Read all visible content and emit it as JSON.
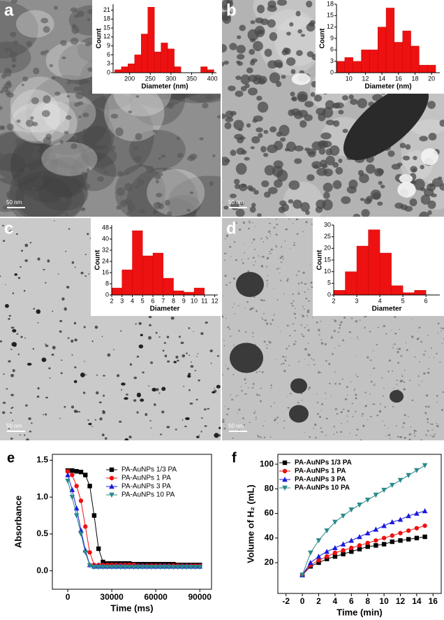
{
  "chart_data": [
    {
      "type": "histogram",
      "panel": "a",
      "scale_bar": "50 nm",
      "xlabel": "Diameter (nm)",
      "ylabel": "Count",
      "color": "#ee1111",
      "bins": [
        164,
        180,
        196,
        212,
        228,
        244,
        260,
        276,
        292,
        308,
        324,
        340,
        356,
        372,
        388,
        404
      ],
      "counts": [
        1,
        2,
        3,
        6,
        13,
        22,
        7,
        10,
        8,
        2,
        0,
        0,
        0,
        2,
        1
      ],
      "xlim": [
        160,
        410
      ],
      "xticks": [
        200,
        250,
        300,
        350,
        400
      ],
      "ylim": [
        0,
        23
      ],
      "yticks": [
        0,
        3,
        6,
        9,
        12,
        15,
        18,
        21
      ]
    },
    {
      "type": "histogram",
      "panel": "b",
      "scale_bar": "50 nm",
      "xlabel": "Diameter (nm)",
      "ylabel": "Count",
      "color": "#ee1111",
      "bins": [
        8.5,
        9.5,
        10.5,
        11.5,
        12.5,
        13.5,
        14.5,
        15.5,
        16.5,
        17.5,
        18.5,
        19.5,
        20.5
      ],
      "counts": [
        3,
        4,
        3,
        6,
        6,
        12,
        17,
        8,
        11,
        7,
        2,
        2
      ],
      "xlim": [
        8.5,
        21
      ],
      "xticks": [
        10,
        12,
        14,
        16,
        18,
        20
      ],
      "ylim": [
        0,
        18
      ],
      "yticks": [
        0,
        3,
        6,
        9,
        12,
        15,
        18
      ]
    },
    {
      "type": "histogram",
      "panel": "c",
      "scale_bar": "50 nm",
      "xlabel": "Diameter",
      "ylabel": "Count",
      "color": "#ee1111",
      "bins": [
        2,
        3,
        4,
        5,
        6,
        7,
        8,
        9,
        10,
        11
      ],
      "counts": [
        5,
        18,
        46,
        28,
        30,
        12,
        3,
        2,
        5
      ],
      "xlim": [
        2,
        12.3
      ],
      "xticks": [
        2,
        3,
        4,
        5,
        6,
        7,
        8,
        9,
        10,
        11,
        12
      ],
      "ylim": [
        0,
        50
      ],
      "yticks": [
        0,
        8,
        16,
        24,
        32,
        40,
        48
      ]
    },
    {
      "type": "histogram",
      "panel": "d",
      "scale_bar": "50 nm",
      "xlabel": "Diameter",
      "ylabel": "Count",
      "color": "#ee1111",
      "bins": [
        2,
        2.5,
        3,
        3.5,
        4,
        4.5,
        5,
        5.5,
        6
      ],
      "counts": [
        2,
        10,
        21,
        28,
        18,
        4,
        1,
        2
      ],
      "xlim": [
        2,
        6.6
      ],
      "xticks": [
        2,
        3,
        4,
        5,
        6
      ],
      "ylim": [
        0,
        30
      ],
      "yticks": [
        0,
        5,
        10,
        15,
        20,
        25,
        30
      ]
    },
    {
      "type": "line",
      "panel": "e",
      "xlabel": "Time (ms)",
      "ylabel": "Absorbance",
      "x": [
        0,
        3000,
        6000,
        9000,
        12000,
        15000,
        18000,
        21000,
        24000,
        27000,
        30000,
        33000,
        36000,
        39000,
        42000,
        45000,
        48000,
        51000,
        54000,
        57000,
        60000,
        63000,
        66000,
        69000,
        72000,
        75000,
        78000,
        81000,
        84000,
        87000,
        90000
      ],
      "series": [
        {
          "name": "PA-AuNPs 1/3 PA",
          "color": "#000000",
          "marker": "square",
          "values": [
            1.36,
            1.36,
            1.35,
            1.34,
            1.3,
            1.15,
            0.75,
            0.3,
            0.12,
            0.1,
            0.1,
            0.1,
            0.1,
            0.1,
            0.1,
            0.09,
            0.09,
            0.09,
            0.09,
            0.09,
            0.09,
            0.09,
            0.09,
            0.09,
            0.09,
            0.08,
            0.08,
            0.08,
            0.08,
            0.08,
            0.08
          ]
        },
        {
          "name": "PA-AuNPs 1 PA",
          "color": "#ee1111",
          "marker": "circle",
          "values": [
            1.35,
            1.3,
            1.15,
            0.95,
            0.6,
            0.25,
            0.08,
            0.08,
            0.08,
            0.08,
            0.08,
            0.08,
            0.08,
            0.08,
            0.08,
            0.08,
            0.07,
            0.07,
            0.07,
            0.07,
            0.07,
            0.07,
            0.07,
            0.07,
            0.07,
            0.07,
            0.07,
            0.07,
            0.07,
            0.07,
            0.07
          ]
        },
        {
          "name": "PA-AuNPs 3 PA",
          "color": "#1a1adb",
          "marker": "triangle-up",
          "values": [
            1.3,
            1.1,
            0.85,
            0.55,
            0.28,
            0.08,
            0.06,
            0.06,
            0.06,
            0.06,
            0.06,
            0.06,
            0.06,
            0.06,
            0.06,
            0.06,
            0.06,
            0.06,
            0.06,
            0.06,
            0.06,
            0.06,
            0.06,
            0.06,
            0.06,
            0.06,
            0.06,
            0.06,
            0.06,
            0.06,
            0.06
          ]
        },
        {
          "name": "PA-AuNPs 10 PA",
          "color": "#2a8a8a",
          "marker": "triangle-down",
          "values": [
            1.22,
            1.0,
            0.75,
            0.5,
            0.25,
            0.07,
            0.05,
            0.05,
            0.05,
            0.05,
            0.05,
            0.05,
            0.05,
            0.05,
            0.05,
            0.05,
            0.05,
            0.05,
            0.05,
            0.05,
            0.05,
            0.05,
            0.05,
            0.05,
            0.05,
            0.05,
            0.05,
            0.05,
            0.05,
            0.05,
            0.05
          ]
        }
      ],
      "xlim": [
        -10500,
        98000
      ],
      "xticks": [
        0,
        30000,
        60000,
        90000
      ],
      "ylim": [
        -0.25,
        1.58
      ],
      "yticks": [
        {
          "value": 0,
          "label": "0.0"
        },
        0.5,
        {
          "value": 1,
          "label": "1.0"
        },
        1.5
      ]
    },
    {
      "type": "line",
      "panel": "f",
      "xlabel": "Time (min)",
      "ylabel": "Volume of H₂ (mL)",
      "x": [
        0,
        1,
        2,
        3,
        4,
        5,
        6,
        7,
        8,
        9,
        10,
        11,
        12,
        13,
        14,
        15
      ],
      "series": [
        {
          "name": "PA-AuNPs 1/3 PA",
          "color": "#000000",
          "marker": "square",
          "values": [
            10,
            17,
            20,
            23,
            25,
            27,
            29,
            31,
            33,
            34,
            35,
            37,
            38,
            39,
            40,
            41
          ]
        },
        {
          "name": "PA-AuNPs 1 PA",
          "color": "#ee1111",
          "marker": "circle",
          "values": [
            10,
            18,
            22,
            25,
            28,
            30,
            32,
            34,
            36,
            38,
            40,
            42,
            44,
            46,
            48,
            50
          ]
        },
        {
          "name": "PA-AuNPs 3 PA",
          "color": "#1a1adb",
          "marker": "triangle-up",
          "values": [
            10,
            20,
            25,
            29,
            32,
            35,
            38,
            41,
            44,
            47,
            50,
            53,
            55,
            58,
            60,
            62
          ]
        },
        {
          "name": "PA-AuNPs 10 PA",
          "color": "#2a8a8a",
          "marker": "triangle-down",
          "values": [
            10,
            28,
            38,
            46,
            53,
            58,
            63,
            67,
            71,
            75,
            79,
            83,
            87,
            91,
            95,
            99
          ]
        }
      ],
      "xlim": [
        -3,
        17
      ],
      "xticks": [
        -2,
        0,
        2,
        4,
        6,
        8,
        10,
        12,
        14,
        16
      ],
      "ylim": [
        -5,
        108
      ],
      "yticks": [
        20,
        40,
        60,
        80,
        100
      ]
    }
  ]
}
